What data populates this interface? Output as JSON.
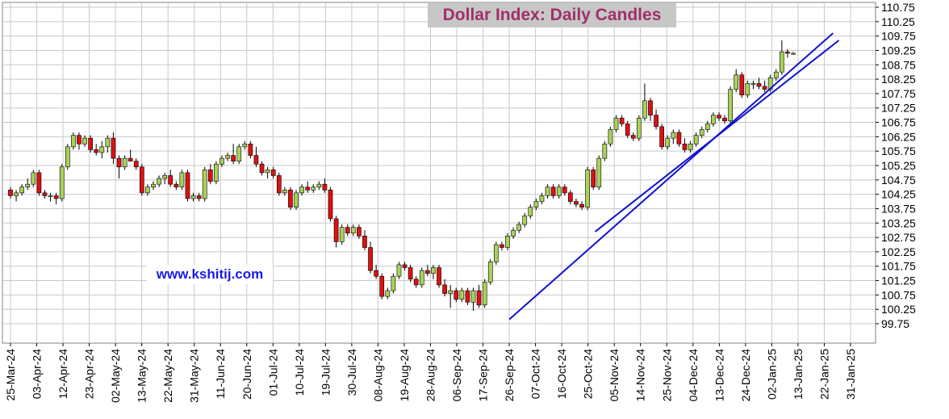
{
  "chart_data": {
    "type": "candlestick",
    "title": "Dollar Index: Daily Candles",
    "watermark": "www.kshitij.com",
    "ylim": [
      99.75,
      110.75
    ],
    "y_ticks": [
      "110.75",
      "110.25",
      "109.75",
      "109.25",
      "108.75",
      "108.25",
      "107.75",
      "107.25",
      "106.75",
      "106.25",
      "105.75",
      "105.25",
      "104.75",
      "104.25",
      "103.75",
      "103.25",
      "102.75",
      "102.25",
      "101.75",
      "101.25",
      "100.75",
      "100.25",
      "99.75"
    ],
    "x_ticks": [
      "25-Mar-24",
      "03-Apr-24",
      "12-Apr-24",
      "23-Apr-24",
      "02-May-24",
      "13-May-24",
      "22-May-24",
      "31-May-24",
      "11-Jun-24",
      "20-Jun-24",
      "01-Jul-24",
      "10-Jul-24",
      "19-Jul-24",
      "30-Jul-24",
      "08-Aug-24",
      "19-Aug-24",
      "28-Aug-24",
      "06-Sep-24",
      "17-Sep-24",
      "26-Sep-24",
      "07-Oct-24",
      "16-Oct-24",
      "25-Oct-24",
      "05-Nov-24",
      "14-Nov-24",
      "25-Nov-24",
      "04-Dec-24",
      "13-Dec-24",
      "24-Dec-24",
      "02-Jan-25",
      "13-Jan-25",
      "22-Jan-25",
      "31-Jan-25"
    ],
    "up_color": "#a8d15a",
    "down_color": "#dd1111",
    "trendline_color": "#1010d0",
    "grid": true,
    "candles": [
      [
        104.4,
        104.5,
        104.1,
        104.2
      ],
      [
        104.2,
        104.4,
        104.0,
        104.3
      ],
      [
        104.3,
        104.6,
        104.2,
        104.5
      ],
      [
        104.5,
        104.8,
        104.4,
        104.6
      ],
      [
        104.6,
        105.1,
        104.5,
        105.0
      ],
      [
        105.0,
        105.1,
        104.2,
        104.3
      ],
      [
        104.3,
        104.4,
        104.1,
        104.2
      ],
      [
        104.2,
        104.3,
        104.0,
        104.2
      ],
      [
        104.2,
        104.3,
        103.9,
        104.1
      ],
      [
        104.1,
        105.3,
        104.0,
        105.2
      ],
      [
        105.2,
        106.0,
        105.1,
        105.9
      ],
      [
        105.9,
        106.4,
        105.8,
        106.3
      ],
      [
        106.3,
        106.4,
        105.8,
        106.0
      ],
      [
        106.0,
        106.3,
        105.9,
        106.2
      ],
      [
        106.2,
        106.3,
        105.7,
        105.8
      ],
      [
        105.8,
        106.0,
        105.6,
        105.7
      ],
      [
        105.7,
        106.1,
        105.5,
        105.9
      ],
      [
        105.9,
        106.3,
        105.7,
        106.2
      ],
      [
        106.2,
        106.4,
        105.3,
        105.5
      ],
      [
        105.5,
        105.6,
        104.8,
        105.2
      ],
      [
        105.2,
        105.6,
        105.1,
        105.5
      ],
      [
        105.5,
        105.8,
        105.4,
        105.4
      ],
      [
        105.4,
        105.5,
        105.1,
        105.2
      ],
      [
        105.2,
        105.3,
        104.2,
        104.3
      ],
      [
        104.3,
        104.6,
        104.2,
        104.5
      ],
      [
        104.5,
        104.7,
        104.4,
        104.6
      ],
      [
        104.6,
        104.9,
        104.5,
        104.8
      ],
      [
        104.8,
        105.0,
        104.6,
        104.9
      ],
      [
        104.9,
        105.1,
        104.5,
        104.6
      ],
      [
        104.6,
        104.7,
        104.4,
        104.5
      ],
      [
        104.5,
        105.1,
        104.4,
        105.0
      ],
      [
        105.0,
        105.1,
        104.0,
        104.1
      ],
      [
        104.1,
        104.3,
        104.0,
        104.2
      ],
      [
        104.2,
        104.3,
        104.0,
        104.1
      ],
      [
        104.1,
        105.2,
        104.0,
        105.1
      ],
      [
        105.1,
        105.3,
        104.6,
        104.7
      ],
      [
        104.7,
        105.4,
        104.6,
        105.3
      ],
      [
        105.3,
        105.6,
        105.2,
        105.5
      ],
      [
        105.5,
        105.7,
        105.4,
        105.6
      ],
      [
        105.6,
        106.0,
        105.3,
        105.4
      ],
      [
        105.4,
        106.0,
        105.3,
        105.9
      ],
      [
        105.9,
        106.1,
        105.8,
        106.0
      ],
      [
        106.0,
        106.1,
        105.5,
        105.6
      ],
      [
        105.6,
        105.9,
        105.2,
        105.3
      ],
      [
        105.3,
        105.4,
        104.9,
        105.0
      ],
      [
        105.0,
        105.2,
        104.8,
        105.1
      ],
      [
        105.1,
        105.2,
        104.8,
        104.9
      ],
      [
        104.9,
        105.0,
        104.2,
        104.3
      ],
      [
        104.3,
        104.5,
        104.2,
        104.4
      ],
      [
        104.4,
        104.5,
        103.7,
        103.8
      ],
      [
        103.8,
        104.4,
        103.7,
        104.3
      ],
      [
        104.3,
        104.6,
        104.2,
        104.5
      ],
      [
        104.5,
        104.7,
        104.3,
        104.4
      ],
      [
        104.4,
        104.6,
        104.3,
        104.5
      ],
      [
        104.5,
        104.7,
        104.4,
        104.6
      ],
      [
        104.6,
        104.8,
        104.3,
        104.4
      ],
      [
        104.4,
        104.5,
        103.3,
        103.4
      ],
      [
        103.4,
        103.5,
        102.4,
        102.6
      ],
      [
        102.6,
        103.2,
        102.5,
        103.1
      ],
      [
        103.1,
        103.2,
        102.8,
        102.9
      ],
      [
        102.9,
        103.2,
        102.8,
        103.1
      ],
      [
        103.1,
        103.2,
        102.7,
        102.8
      ],
      [
        102.8,
        103.0,
        102.3,
        102.4
      ],
      [
        102.4,
        102.6,
        101.5,
        101.6
      ],
      [
        101.6,
        101.8,
        101.3,
        101.4
      ],
      [
        101.4,
        101.5,
        100.6,
        100.7
      ],
      [
        100.7,
        101.0,
        100.6,
        100.9
      ],
      [
        100.9,
        101.5,
        100.8,
        101.4
      ],
      [
        101.4,
        101.9,
        101.3,
        101.8
      ],
      [
        101.8,
        101.9,
        101.6,
        101.7
      ],
      [
        101.7,
        101.8,
        101.2,
        101.3
      ],
      [
        101.3,
        101.4,
        101.0,
        101.1
      ],
      [
        101.1,
        101.7,
        101.0,
        101.6
      ],
      [
        101.6,
        101.8,
        101.4,
        101.5
      ],
      [
        101.5,
        101.8,
        101.3,
        101.7
      ],
      [
        101.7,
        101.8,
        101.0,
        101.1
      ],
      [
        101.1,
        101.3,
        100.7,
        100.8
      ],
      [
        100.8,
        101.1,
        100.3,
        100.9
      ],
      [
        100.9,
        101.0,
        100.5,
        100.6
      ],
      [
        100.6,
        101.0,
        100.5,
        100.9
      ],
      [
        100.9,
        101.0,
        100.4,
        100.5
      ],
      [
        100.5,
        101.0,
        100.2,
        100.9
      ],
      [
        100.9,
        101.1,
        100.3,
        100.4
      ],
      [
        100.4,
        101.3,
        100.3,
        101.2
      ],
      [
        101.2,
        102.0,
        101.1,
        101.9
      ],
      [
        101.9,
        102.6,
        101.8,
        102.5
      ],
      [
        102.5,
        102.6,
        102.3,
        102.4
      ],
      [
        102.4,
        102.9,
        102.3,
        102.8
      ],
      [
        102.8,
        103.1,
        102.7,
        103.0
      ],
      [
        103.0,
        103.3,
        102.9,
        103.2
      ],
      [
        103.2,
        103.6,
        103.1,
        103.5
      ],
      [
        103.5,
        103.9,
        103.4,
        103.8
      ],
      [
        103.8,
        104.1,
        103.7,
        104.0
      ],
      [
        104.0,
        104.3,
        103.9,
        104.2
      ],
      [
        104.2,
        104.6,
        104.1,
        104.5
      ],
      [
        104.5,
        104.6,
        104.1,
        104.2
      ],
      [
        104.2,
        104.6,
        104.1,
        104.5
      ],
      [
        104.5,
        104.6,
        104.2,
        104.3
      ],
      [
        104.3,
        104.4,
        103.9,
        104.0
      ],
      [
        104.0,
        104.1,
        103.8,
        103.9
      ],
      [
        103.9,
        104.0,
        103.7,
        103.8
      ],
      [
        103.8,
        105.2,
        103.7,
        105.1
      ],
      [
        105.1,
        105.2,
        104.4,
        104.5
      ],
      [
        104.5,
        105.6,
        104.4,
        105.5
      ],
      [
        105.5,
        106.1,
        105.4,
        106.0
      ],
      [
        106.0,
        106.6,
        105.9,
        106.5
      ],
      [
        106.5,
        107.0,
        106.4,
        106.9
      ],
      [
        106.9,
        107.0,
        106.6,
        106.7
      ],
      [
        106.7,
        106.8,
        106.2,
        106.3
      ],
      [
        106.3,
        106.4,
        106.1,
        106.2
      ],
      [
        106.2,
        107.0,
        106.1,
        106.9
      ],
      [
        106.9,
        108.1,
        106.8,
        107.5
      ],
      [
        107.5,
        107.6,
        106.8,
        107.0
      ],
      [
        107.0,
        107.2,
        106.5,
        106.6
      ],
      [
        106.6,
        106.7,
        105.8,
        105.9
      ],
      [
        105.9,
        106.3,
        105.8,
        106.2
      ],
      [
        106.2,
        106.5,
        106.0,
        106.4
      ],
      [
        106.4,
        106.5,
        105.9,
        106.0
      ],
      [
        106.0,
        106.2,
        105.7,
        105.8
      ],
      [
        105.8,
        106.1,
        105.7,
        106.0
      ],
      [
        106.0,
        106.4,
        105.9,
        106.3
      ],
      [
        106.3,
        106.6,
        106.2,
        106.5
      ],
      [
        106.5,
        106.8,
        106.4,
        106.7
      ],
      [
        106.7,
        107.1,
        106.6,
        107.0
      ],
      [
        107.0,
        107.1,
        106.8,
        106.9
      ],
      [
        106.9,
        107.0,
        106.7,
        106.8
      ],
      [
        106.8,
        108.0,
        106.7,
        107.9
      ],
      [
        107.9,
        108.6,
        107.8,
        108.4
      ],
      [
        108.4,
        108.5,
        107.6,
        107.7
      ],
      [
        107.7,
        108.2,
        107.6,
        108.1
      ],
      [
        108.1,
        108.2,
        107.9,
        108.1
      ],
      [
        108.1,
        108.3,
        107.9,
        108.0
      ],
      [
        108.0,
        108.2,
        107.8,
        107.9
      ],
      [
        107.9,
        108.4,
        107.8,
        108.3
      ],
      [
        108.3,
        108.6,
        108.2,
        108.5
      ],
      [
        108.5,
        109.6,
        108.4,
        109.2
      ],
      [
        109.2,
        109.3,
        109.0,
        109.15
      ],
      [
        109.15,
        109.2,
        109.1,
        109.15
      ]
    ],
    "trendlines": [
      {
        "from": {
          "x": "26-Sep-24",
          "y": 99.9
        },
        "to": {
          "x": "25-Jan-25",
          "y": 109.85
        }
      },
      {
        "from": {
          "x": "28-Oct-24",
          "y": 102.95
        },
        "to": {
          "x": "27-Jan-25",
          "y": 109.6
        }
      }
    ]
  },
  "plot_bg": "#ffffff",
  "grid_color": "#c8c8c8"
}
